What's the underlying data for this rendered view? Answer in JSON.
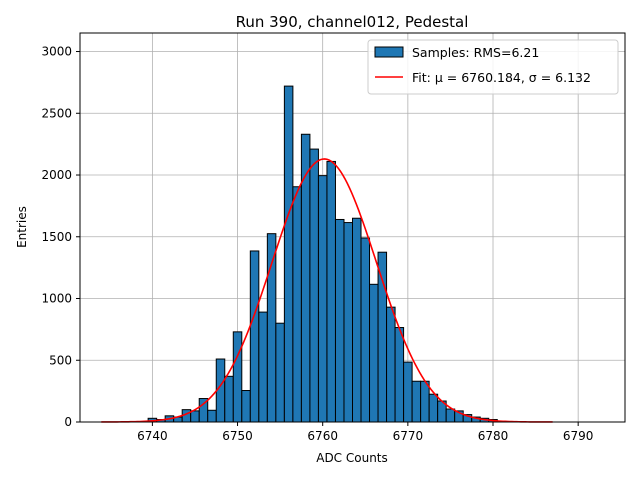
{
  "chart_data": {
    "type": "bar",
    "title": "Run 390, channel012, Pedestal",
    "xlabel": "ADC Counts",
    "ylabel": "Entries",
    "xlim": [
      6731.5,
      6795.5
    ],
    "ylim": [
      0,
      3150
    ],
    "xticks": [
      6740,
      6750,
      6760,
      6770,
      6780,
      6790
    ],
    "yticks": [
      0,
      500,
      1000,
      1500,
      2000,
      2500,
      3000
    ],
    "grid": true,
    "legend_position": "top-right",
    "histogram": {
      "name": "Samples: RMS=6.21",
      "color": "#1f77b4",
      "bin_width": 1,
      "bins": [
        {
          "x": 6740,
          "y": 30
        },
        {
          "x": 6741,
          "y": 20
        },
        {
          "x": 6742,
          "y": 50
        },
        {
          "x": 6743,
          "y": 40
        },
        {
          "x": 6744,
          "y": 100
        },
        {
          "x": 6745,
          "y": 90
        },
        {
          "x": 6746,
          "y": 190
        },
        {
          "x": 6747,
          "y": 95
        },
        {
          "x": 6748,
          "y": 510
        },
        {
          "x": 6749,
          "y": 370
        },
        {
          "x": 6750,
          "y": 730
        },
        {
          "x": 6751,
          "y": 255
        },
        {
          "x": 6752,
          "y": 1385
        },
        {
          "x": 6753,
          "y": 890
        },
        {
          "x": 6754,
          "y": 1525
        },
        {
          "x": 6755,
          "y": 800
        },
        {
          "x": 6756,
          "y": 2720
        },
        {
          "x": 6757,
          "y": 1905
        },
        {
          "x": 6758,
          "y": 2330
        },
        {
          "x": 6759,
          "y": 2210
        },
        {
          "x": 6760,
          "y": 1995
        },
        {
          "x": 6761,
          "y": 2110
        },
        {
          "x": 6762,
          "y": 1640
        },
        {
          "x": 6763,
          "y": 1615
        },
        {
          "x": 6764,
          "y": 1650
        },
        {
          "x": 6765,
          "y": 1490
        },
        {
          "x": 6766,
          "y": 1115
        },
        {
          "x": 6767,
          "y": 1375
        },
        {
          "x": 6768,
          "y": 930
        },
        {
          "x": 6769,
          "y": 765
        },
        {
          "x": 6770,
          "y": 485
        },
        {
          "x": 6771,
          "y": 330
        },
        {
          "x": 6772,
          "y": 330
        },
        {
          "x": 6773,
          "y": 225
        },
        {
          "x": 6774,
          "y": 170
        },
        {
          "x": 6775,
          "y": 105
        },
        {
          "x": 6776,
          "y": 90
        },
        {
          "x": 6777,
          "y": 60
        },
        {
          "x": 6778,
          "y": 40
        },
        {
          "x": 6779,
          "y": 30
        },
        {
          "x": 6780,
          "y": 20
        }
      ]
    },
    "fit": {
      "name": "Fit: μ = 6760.184, σ = 6.132",
      "color": "#ff0000",
      "mu": 6760.184,
      "sigma": 6.132,
      "amplitude": 2130,
      "x_range": [
        6734,
        6787
      ]
    }
  }
}
